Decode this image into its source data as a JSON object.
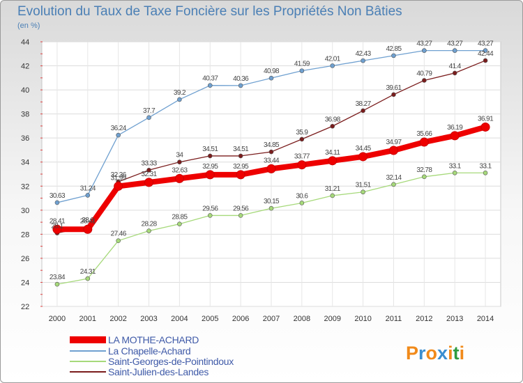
{
  "chart_data": {
    "type": "line",
    "title": "Evolution du Taux de Taxe Foncière sur les Propriétés Non Bâties",
    "subtitle": "(en %)",
    "xlabel": "",
    "ylabel": "",
    "x": [
      "2000",
      "2001",
      "2002",
      "2003",
      "2004",
      "2005",
      "2006",
      "2007",
      "2008",
      "2009",
      "2010",
      "2011",
      "2012",
      "2013",
      "2014"
    ],
    "ylim": [
      22,
      44
    ],
    "yticks": [
      22,
      24,
      26,
      28,
      30,
      32,
      34,
      36,
      38,
      40,
      42,
      44
    ],
    "grid": true,
    "legend_position": "bottom-left",
    "series": [
      {
        "name": "LA MOTHE-ACHARD",
        "color": "#ee0000",
        "values": [
          28.41,
          28.41,
          31.99,
          32.31,
          32.63,
          32.95,
          32.95,
          33.44,
          33.77,
          34.11,
          34.45,
          34.97,
          35.66,
          36.19,
          36.91
        ]
      },
      {
        "name": "La Chapelle-Achard",
        "color": "#6fa0d0",
        "values": [
          30.63,
          31.24,
          36.24,
          37.7,
          39.2,
          40.37,
          40.36,
          40.98,
          41.59,
          42.01,
          42.43,
          42.85,
          43.27,
          43.27,
          43.27
        ]
      },
      {
        "name": "Saint-Georges-de-Pointindoux",
        "color": "#a6d97a",
        "values": [
          23.84,
          24.31,
          27.46,
          28.28,
          28.85,
          29.56,
          29.56,
          30.15,
          30.6,
          31.21,
          31.51,
          32.14,
          32.78,
          33.1,
          33.1
        ]
      },
      {
        "name": "Saint-Julien-des-Landes",
        "color": "#7a1c1c",
        "values": [
          28.1,
          28.6,
          32.36,
          33.33,
          34,
          34.51,
          34.51,
          34.85,
          35.9,
          36.98,
          38.27,
          39.61,
          40.79,
          41.4,
          42.44
        ]
      }
    ]
  },
  "logo": {
    "letters": [
      "P",
      "r",
      "o",
      "x",
      "i",
      "t",
      "i"
    ],
    "colors": [
      "#f18a1a",
      "#3a8ed0",
      "#f18a1a",
      "#3a8ed0",
      "#f18a1a",
      "#2e9b3e",
      "#f18a1a"
    ]
  }
}
